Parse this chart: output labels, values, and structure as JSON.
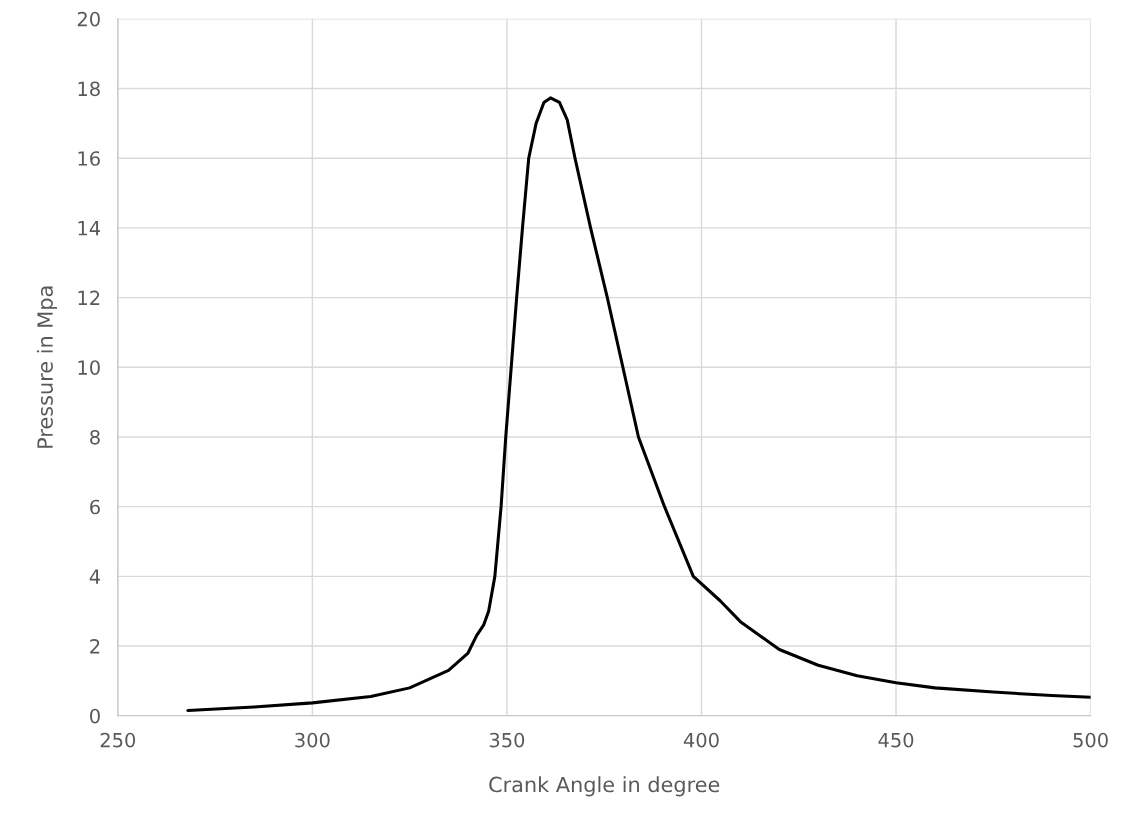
{
  "chart_data": {
    "type": "line",
    "xlabel": "Crank Angle in degree",
    "ylabel": "Pressure in Mpa",
    "series": [
      {
        "color": "#000000",
        "x": [
          268,
          285,
          300,
          315,
          325,
          335,
          340,
          342.2,
          344,
          345.3,
          346.9,
          348.5,
          349.7,
          351.1,
          352.5,
          354,
          355.6,
          357.5,
          359.5,
          361.2,
          363.5,
          365.5,
          367.5,
          371.5,
          375.8,
          379.8,
          383.8,
          390.5,
          397.9,
          404.8,
          410,
          420,
          430,
          440,
          450,
          460,
          475,
          490,
          500
        ],
        "values": [
          0.15,
          0.25,
          0.37,
          0.55,
          0.8,
          1.3,
          1.8,
          2.3,
          2.6,
          3,
          4,
          6,
          8,
          10,
          12,
          14,
          16,
          17,
          17.6,
          17.73,
          17.6,
          17.1,
          16,
          14,
          12,
          10,
          8,
          6,
          4,
          3.3,
          2.7,
          1.9,
          1.45,
          1.15,
          0.95,
          0.8,
          0.68,
          0.58,
          0.53
        ]
      }
    ],
    "xlim": [
      250,
      500
    ],
    "xticks": [
      250,
      300,
      350,
      400,
      450,
      500
    ],
    "ylim": [
      0,
      20
    ],
    "yticks": [
      0,
      2,
      4,
      6,
      8,
      10,
      12,
      14,
      16,
      18,
      20
    ],
    "grid": true,
    "line_style": "solid",
    "marker": "none"
  }
}
